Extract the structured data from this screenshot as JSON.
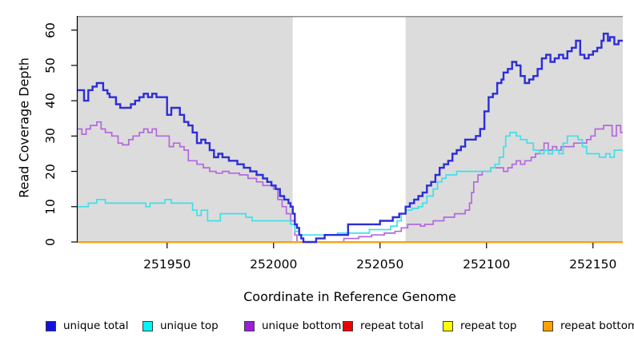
{
  "chart_data": {
    "type": "line",
    "step": "after",
    "title": "",
    "xlabel": "Coordinate in Reference Genome",
    "ylabel": "Read Coverage Depth",
    "xlim": [
      251908,
      252164
    ],
    "ylim": [
      0,
      64
    ],
    "x_ticks": [
      251950,
      252000,
      252050,
      252100,
      252150
    ],
    "y_ticks": [
      0,
      10,
      20,
      30,
      40,
      50,
      60
    ],
    "grid": false,
    "legend_position": "bottom",
    "plot_background": "#dcdcdc",
    "highlight_window": {
      "x0": 252009,
      "x1": 252062,
      "color": "#ffffff"
    },
    "top_border_color": "#8c8c8c",
    "axis_color": "#000000",
    "series": [
      {
        "name": "unique total",
        "color": "#2d2dd8",
        "legend_color": "#1111e0",
        "width": 2.4,
        "points": [
          [
            251908,
            43
          ],
          [
            251911,
            40
          ],
          [
            251913,
            43
          ],
          [
            251915,
            44
          ],
          [
            251917,
            45
          ],
          [
            251920,
            43
          ],
          [
            251922,
            42
          ],
          [
            251923,
            41
          ],
          [
            251926,
            39
          ],
          [
            251928,
            38
          ],
          [
            251931,
            38
          ],
          [
            251933,
            39
          ],
          [
            251935,
            40
          ],
          [
            251937,
            41
          ],
          [
            251939,
            42
          ],
          [
            251941,
            41
          ],
          [
            251943,
            42
          ],
          [
            251945,
            41
          ],
          [
            251950,
            36
          ],
          [
            251952,
            38
          ],
          [
            251956,
            36
          ],
          [
            251958,
            34
          ],
          [
            251960,
            33
          ],
          [
            251962,
            31
          ],
          [
            251964,
            28
          ],
          [
            251966,
            29
          ],
          [
            251968,
            28
          ],
          [
            251970,
            26
          ],
          [
            251972,
            24
          ],
          [
            251974,
            25
          ],
          [
            251976,
            24
          ],
          [
            251979,
            23
          ],
          [
            251983,
            22
          ],
          [
            251986,
            21
          ],
          [
            251989,
            20
          ],
          [
            251992,
            19
          ],
          [
            251995,
            18
          ],
          [
            251997,
            17
          ],
          [
            251999,
            16
          ],
          [
            252001,
            15
          ],
          [
            252003,
            13
          ],
          [
            252005,
            12
          ],
          [
            252007,
            11
          ],
          [
            252008,
            10
          ],
          [
            252009,
            8
          ],
          [
            252010,
            5
          ],
          [
            252011,
            4
          ],
          [
            252012,
            2
          ],
          [
            252013,
            1
          ],
          [
            252014,
            0
          ],
          [
            252020,
            1
          ],
          [
            252024,
            2
          ],
          [
            252035,
            5
          ],
          [
            252050,
            6
          ],
          [
            252056,
            7
          ],
          [
            252059,
            8
          ],
          [
            252062,
            10
          ],
          [
            252064,
            11
          ],
          [
            252066,
            12
          ],
          [
            252068,
            13
          ],
          [
            252070,
            14
          ],
          [
            252072,
            16
          ],
          [
            252074,
            17
          ],
          [
            252076,
            19
          ],
          [
            252078,
            21
          ],
          [
            252080,
            22
          ],
          [
            252082,
            23
          ],
          [
            252084,
            25
          ],
          [
            252086,
            26
          ],
          [
            252088,
            27
          ],
          [
            252090,
            29
          ],
          [
            252095,
            30
          ],
          [
            252097,
            32
          ],
          [
            252099,
            37
          ],
          [
            252101,
            41
          ],
          [
            252103,
            42
          ],
          [
            252105,
            45
          ],
          [
            252107,
            46
          ],
          [
            252108,
            48
          ],
          [
            252110,
            49
          ],
          [
            252112,
            51
          ],
          [
            252114,
            50
          ],
          [
            252116,
            47
          ],
          [
            252118,
            45
          ],
          [
            252120,
            46
          ],
          [
            252122,
            47
          ],
          [
            252124,
            49
          ],
          [
            252126,
            52
          ],
          [
            252128,
            53
          ],
          [
            252130,
            51
          ],
          [
            252132,
            52
          ],
          [
            252134,
            53
          ],
          [
            252136,
            52
          ],
          [
            252138,
            54
          ],
          [
            252140,
            55
          ],
          [
            252142,
            57
          ],
          [
            252144,
            53
          ],
          [
            252146,
            52
          ],
          [
            252148,
            53
          ],
          [
            252150,
            54
          ],
          [
            252152,
            55
          ],
          [
            252154,
            57
          ],
          [
            252155,
            59
          ],
          [
            252157,
            57
          ],
          [
            252158,
            58
          ],
          [
            252160,
            56
          ],
          [
            252162,
            57
          ]
        ]
      },
      {
        "name": "unique top",
        "color": "#3fe0e8",
        "legend_color": "#00f5f5",
        "width": 1.7,
        "points": [
          [
            251908,
            10
          ],
          [
            251913,
            11
          ],
          [
            251917,
            12
          ],
          [
            251921,
            11
          ],
          [
            251940,
            10
          ],
          [
            251942,
            11
          ],
          [
            251949,
            12
          ],
          [
            251952,
            11
          ],
          [
            251962,
            9
          ],
          [
            251964,
            7.5
          ],
          [
            251966,
            9
          ],
          [
            251969,
            6
          ],
          [
            251975,
            8
          ],
          [
            251987,
            7
          ],
          [
            251990,
            6
          ],
          [
            252008,
            5
          ],
          [
            252010,
            3
          ],
          [
            252012,
            2
          ],
          [
            252030,
            2.5
          ],
          [
            252045,
            3.5
          ],
          [
            252055,
            4.5
          ],
          [
            252058,
            6
          ],
          [
            252060,
            8
          ],
          [
            252062,
            9
          ],
          [
            252065,
            9.5
          ],
          [
            252068,
            10
          ],
          [
            252070,
            11
          ],
          [
            252072,
            13
          ],
          [
            252075,
            15
          ],
          [
            252077,
            17
          ],
          [
            252079,
            18
          ],
          [
            252081,
            19
          ],
          [
            252086,
            20
          ],
          [
            252100,
            20
          ],
          [
            252102,
            21
          ],
          [
            252104,
            22
          ],
          [
            252106,
            24
          ],
          [
            252108,
            27
          ],
          [
            252109,
            30
          ],
          [
            252111,
            31
          ],
          [
            252114,
            30
          ],
          [
            252116,
            29
          ],
          [
            252119,
            28
          ],
          [
            252122,
            26
          ],
          [
            252125,
            25
          ],
          [
            252127,
            26
          ],
          [
            252129,
            25
          ],
          [
            252131,
            26
          ],
          [
            252134,
            25
          ],
          [
            252136,
            28
          ],
          [
            252138,
            30
          ],
          [
            252141,
            30
          ],
          [
            252143,
            29
          ],
          [
            252145,
            27
          ],
          [
            252147,
            25
          ],
          [
            252153,
            24
          ],
          [
            252156,
            25
          ],
          [
            252158,
            24
          ],
          [
            252160,
            26
          ]
        ]
      },
      {
        "name": "unique bottom",
        "color": "#b368dd",
        "legend_color": "#9d1ede",
        "width": 1.7,
        "points": [
          [
            251908,
            32
          ],
          [
            251910,
            30.5
          ],
          [
            251912,
            32
          ],
          [
            251914,
            33
          ],
          [
            251917,
            34
          ],
          [
            251919,
            32
          ],
          [
            251921,
            31
          ],
          [
            251924,
            30
          ],
          [
            251927,
            28
          ],
          [
            251929,
            27.5
          ],
          [
            251932,
            29
          ],
          [
            251934,
            30
          ],
          [
            251937,
            31
          ],
          [
            251939,
            32
          ],
          [
            251941,
            31
          ],
          [
            251943,
            32
          ],
          [
            251945,
            30
          ],
          [
            251951,
            27
          ],
          [
            251953,
            28
          ],
          [
            251956,
            27
          ],
          [
            251958,
            26
          ],
          [
            251960,
            23
          ],
          [
            251964,
            22
          ],
          [
            251967,
            21
          ],
          [
            251970,
            20
          ],
          [
            251973,
            19.5
          ],
          [
            251976,
            20
          ],
          [
            251979,
            19.5
          ],
          [
            251984,
            19
          ],
          [
            251988,
            18
          ],
          [
            251992,
            17
          ],
          [
            251995,
            16
          ],
          [
            252000,
            15
          ],
          [
            252002,
            12
          ],
          [
            252004,
            10
          ],
          [
            252006,
            8
          ],
          [
            252008,
            6
          ],
          [
            252010,
            2
          ],
          [
            252011,
            0
          ],
          [
            252033,
            1
          ],
          [
            252040,
            1.5
          ],
          [
            252046,
            2
          ],
          [
            252052,
            2.5
          ],
          [
            252057,
            3
          ],
          [
            252060,
            4
          ],
          [
            252063,
            5
          ],
          [
            252069,
            4.5
          ],
          [
            252071,
            5
          ],
          [
            252075,
            6
          ],
          [
            252080,
            7
          ],
          [
            252085,
            8
          ],
          [
            252090,
            9
          ],
          [
            252092,
            11
          ],
          [
            252093,
            14
          ],
          [
            252094,
            17
          ],
          [
            252096,
            19
          ],
          [
            252098,
            20
          ],
          [
            252102,
            21
          ],
          [
            252106,
            21
          ],
          [
            252108,
            20
          ],
          [
            252110,
            21
          ],
          [
            252112,
            22
          ],
          [
            252114,
            23
          ],
          [
            252116,
            22
          ],
          [
            252118,
            23
          ],
          [
            252121,
            24
          ],
          [
            252123,
            25
          ],
          [
            252125,
            26
          ],
          [
            252127,
            28
          ],
          [
            252129,
            26
          ],
          [
            252131,
            27
          ],
          [
            252133,
            26
          ],
          [
            252135,
            27
          ],
          [
            252141,
            28
          ],
          [
            252145,
            28
          ],
          [
            252147,
            29
          ],
          [
            252149,
            30
          ],
          [
            252151,
            32
          ],
          [
            252155,
            33
          ],
          [
            252158,
            33
          ],
          [
            252159,
            30
          ],
          [
            252161,
            33
          ],
          [
            252163,
            31
          ]
        ]
      },
      {
        "name": "repeat total",
        "color": "#e00000",
        "legend_color": "#ee0000",
        "width": 1.5,
        "points": [
          [
            251908,
            0
          ]
        ]
      },
      {
        "name": "repeat top",
        "color": "#f5f500",
        "legend_color": "#ffff00",
        "width": 1.5,
        "points": [
          [
            251908,
            0
          ]
        ]
      },
      {
        "name": "repeat bottom",
        "color": "#ffa200",
        "legend_color": "#ffa200",
        "width": 2,
        "points": [
          [
            251908,
            0
          ]
        ]
      }
    ],
    "draw_order": [
      2,
      1,
      3,
      4,
      5,
      0
    ]
  }
}
